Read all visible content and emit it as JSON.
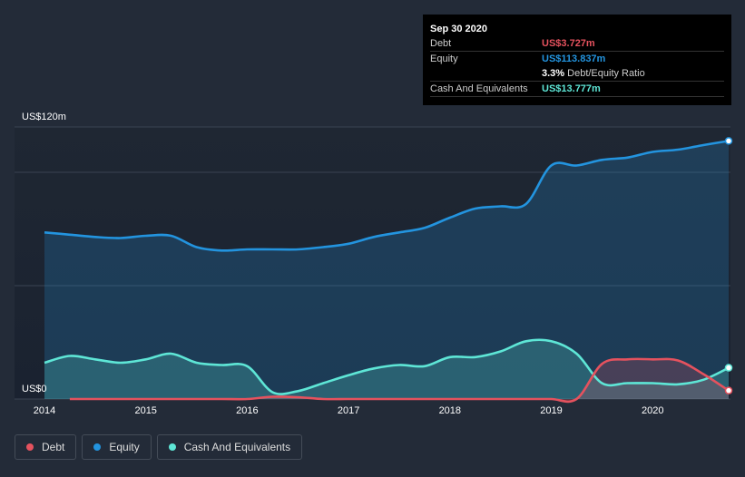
{
  "tooltip": {
    "date": "Sep 30 2020",
    "debt_label": "Debt",
    "debt_value": "US$3.727m",
    "equity_label": "Equity",
    "equity_value": "US$113.837m",
    "ratio_value": "3.3%",
    "ratio_label": "Debt/Equity Ratio",
    "cash_label": "Cash And Equivalents",
    "cash_value": "US$13.777m"
  },
  "legend": [
    {
      "label": "Debt",
      "color": "#e5525e"
    },
    {
      "label": "Equity",
      "color": "#2394df"
    },
    {
      "label": "Cash And Equivalents",
      "color": "#5ee6d6"
    }
  ],
  "chart_data": {
    "type": "area",
    "y_axis_labels": [
      "US$120m",
      "US$0"
    ],
    "ylim": [
      0,
      120
    ],
    "xlim": [
      2014.0,
      2020.75
    ],
    "x_ticks": [
      {
        "label": "2014",
        "value": 2014
      },
      {
        "label": "2015",
        "value": 2015
      },
      {
        "label": "2016",
        "value": 2016
      },
      {
        "label": "2017",
        "value": 2017
      },
      {
        "label": "2018",
        "value": 2018
      },
      {
        "label": "2019",
        "value": 2019
      },
      {
        "label": "2020",
        "value": 2020
      }
    ],
    "grid": true,
    "series": [
      {
        "name": "Equity",
        "color": "#2394df",
        "x": [
          2014.0,
          2014.25,
          2014.5,
          2014.75,
          2015.0,
          2015.25,
          2015.5,
          2015.75,
          2016.0,
          2016.25,
          2016.5,
          2016.75,
          2017.0,
          2017.25,
          2017.5,
          2017.75,
          2018.0,
          2018.25,
          2018.5,
          2018.75,
          2019.0,
          2019.25,
          2019.5,
          2019.75,
          2020.0,
          2020.25,
          2020.5,
          2020.75
        ],
        "values": [
          73.5,
          72.5,
          71.5,
          71.0,
          72.0,
          72.0,
          67.0,
          65.5,
          66.0,
          66.0,
          66.0,
          67.0,
          68.5,
          71.5,
          73.5,
          75.5,
          80.0,
          84.0,
          85.0,
          86.0,
          103.0,
          103.0,
          105.5,
          106.5,
          109.0,
          110.0,
          112.0,
          113.837
        ]
      },
      {
        "name": "Cash And Equivalents",
        "color": "#5ee6d6",
        "x": [
          2014.0,
          2014.25,
          2014.5,
          2014.75,
          2015.0,
          2015.25,
          2015.5,
          2015.75,
          2016.0,
          2016.25,
          2016.5,
          2016.75,
          2017.0,
          2017.25,
          2017.5,
          2017.75,
          2018.0,
          2018.25,
          2018.5,
          2018.75,
          2019.0,
          2019.25,
          2019.5,
          2019.75,
          2020.0,
          2020.25,
          2020.5,
          2020.75
        ],
        "values": [
          16.0,
          19.0,
          17.5,
          16.0,
          17.5,
          20.0,
          16.0,
          15.0,
          14.5,
          3.0,
          3.5,
          7.0,
          10.5,
          13.5,
          15.0,
          14.5,
          18.5,
          18.5,
          21.0,
          25.5,
          25.5,
          20.0,
          7.0,
          7.0,
          7.0,
          6.5,
          8.5,
          13.777
        ]
      },
      {
        "name": "Debt",
        "color": "#e5525e",
        "x": [
          2014.25,
          2014.5,
          2014.75,
          2015.0,
          2015.25,
          2015.5,
          2015.75,
          2016.0,
          2016.25,
          2016.5,
          2016.75,
          2017.0,
          2017.25,
          2017.5,
          2017.75,
          2018.0,
          2018.25,
          2018.5,
          2018.75,
          2019.0,
          2019.25,
          2019.5,
          2019.75,
          2020.0,
          2020.25,
          2020.5,
          2020.75
        ],
        "values": [
          0,
          0,
          0,
          0,
          0,
          0,
          0,
          0,
          1.0,
          0.8,
          0,
          0,
          0,
          0,
          0,
          0,
          0,
          0,
          0,
          0,
          0,
          15.5,
          17.5,
          17.5,
          17.0,
          11.0,
          3.727
        ]
      }
    ]
  }
}
